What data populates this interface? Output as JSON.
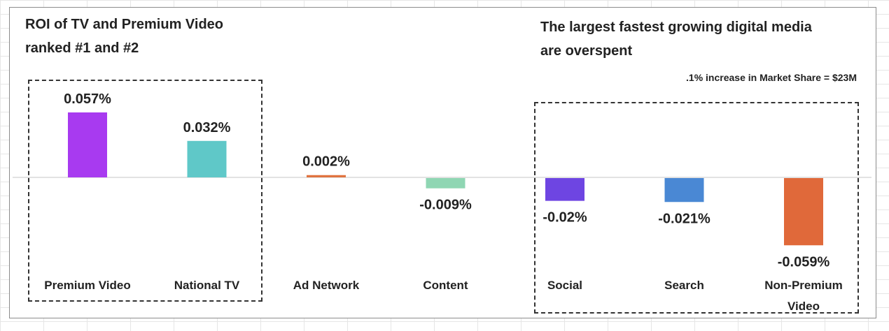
{
  "headline_left": {
    "line1": "ROI of TV and Premium Video",
    "line2": "ranked #1 and #2"
  },
  "headline_right": {
    "line1": "The largest fastest growing digital media",
    "line2": "are overspent"
  },
  "note": ".1% increase in Market Share = $23M",
  "chart_data": {
    "type": "bar",
    "title": "",
    "xlabel": "",
    "ylabel": "",
    "grid": false,
    "legend": "none",
    "unit": "%",
    "categories": [
      [
        "Premium Video"
      ],
      [
        "National TV"
      ],
      [
        "Ad Network"
      ],
      [
        "Content"
      ],
      [
        "Social"
      ],
      [
        "Search"
      ],
      [
        "Non-Premium",
        "Video"
      ]
    ],
    "values": [
      0.057,
      0.032,
      0.002,
      -0.009,
      -0.02,
      -0.021,
      -0.059
    ],
    "value_labels": [
      "0.057%",
      "0.032%",
      "0.002%",
      "-0.009%",
      "-0.02%",
      "-0.021%",
      "-0.059%"
    ],
    "colors": [
      "#a83af0",
      "#5fc8c8",
      "#e0733f",
      "#8fd6b3",
      "#6e45e2",
      "#4a88d4",
      "#e0693a"
    ],
    "ylim": [
      -0.072,
      0.065
    ]
  }
}
